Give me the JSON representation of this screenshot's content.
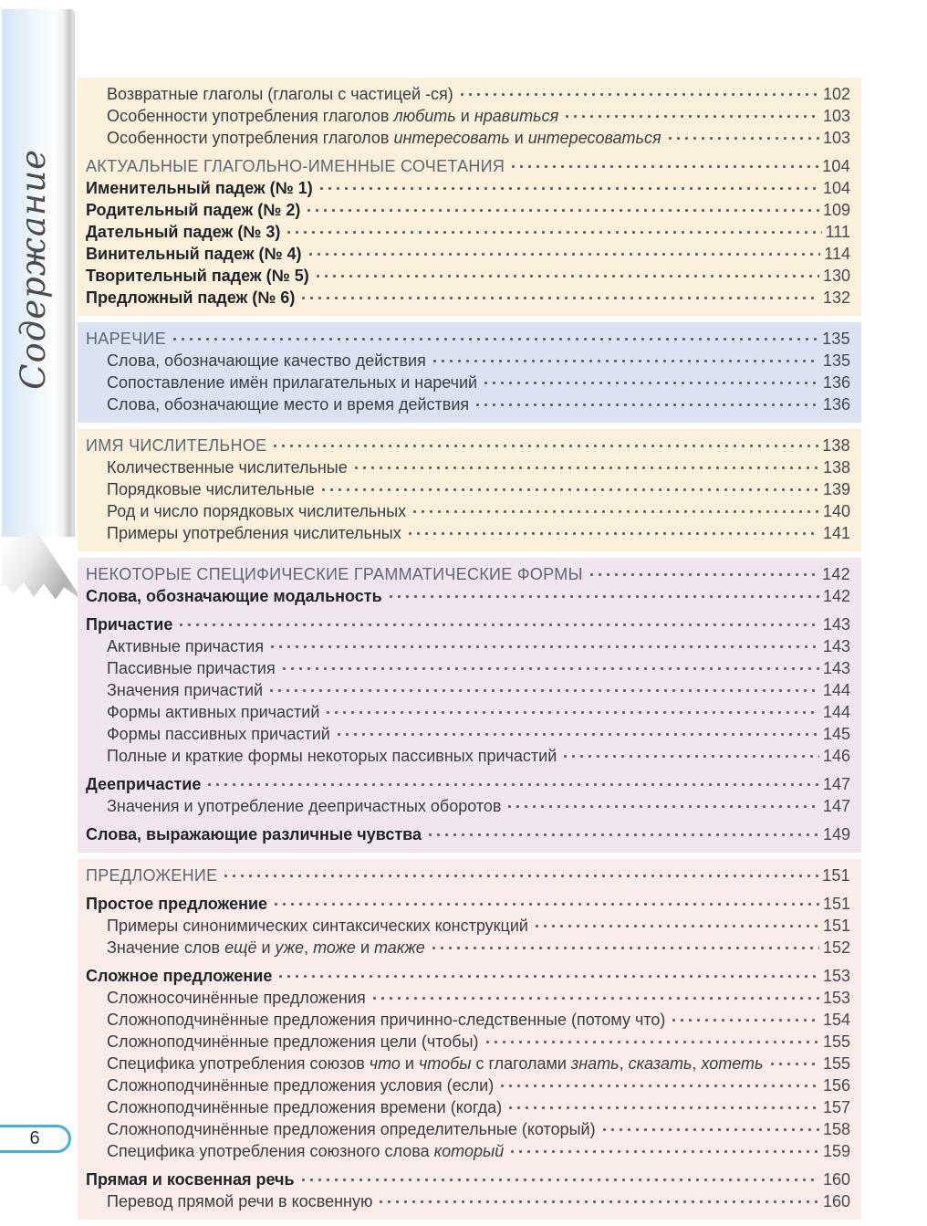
{
  "sidebar": {
    "label": "Содержание"
  },
  "footer": {
    "page_number": "6"
  },
  "colors": {
    "cream": "#faf0db",
    "blue": "#dbe3f2",
    "purple": "#f1e6ef",
    "pink": "#faece9",
    "header_text": "#5c6875",
    "body_text": "#383d44",
    "bold_text": "#1f242a",
    "pill_border": "#3fb0e0"
  },
  "sections": [
    {
      "bg": "cream",
      "entries": [
        {
          "level": "sub",
          "text": "Возвратные глаголы (глаголы с частицей -ся)",
          "page": "102"
        },
        {
          "level": "sub",
          "parts": [
            {
              "t": "Особенности употребления глаголов "
            },
            {
              "t": "любить",
              "i": true
            },
            {
              "t": " и "
            },
            {
              "t": "нравиться",
              "i": true
            }
          ],
          "page": "103"
        },
        {
          "level": "sub",
          "parts": [
            {
              "t": "Особенности употребления глаголов "
            },
            {
              "t": "интересовать",
              "i": true
            },
            {
              "t": " и "
            },
            {
              "t": "интересоваться",
              "i": true
            }
          ],
          "page": "103"
        },
        {
          "level": "header",
          "gap": true,
          "text": "АКТУАЛЬНЫЕ ГЛАГОЛЬНО-ИМЕННЫЕ СОЧЕТАНИЯ",
          "page": "104"
        },
        {
          "level": "bold",
          "text": "Именительный падеж (№ 1)",
          "page": "104"
        },
        {
          "level": "bold",
          "text": "Родительный падеж (№ 2)",
          "page": "109"
        },
        {
          "level": "bold",
          "text": "Дательный падеж (№ 3)",
          "page": "111"
        },
        {
          "level": "bold",
          "text": "Винительный падеж (№ 4)",
          "page": "114"
        },
        {
          "level": "bold",
          "text": "Творительный падеж (№ 5)",
          "page": "130"
        },
        {
          "level": "bold",
          "text": "Предложный падеж (№ 6)",
          "page": "132"
        }
      ]
    },
    {
      "bg": "blue",
      "entries": [
        {
          "level": "header",
          "text": "НАРЕЧИЕ",
          "page": "135"
        },
        {
          "level": "sub",
          "text": "Слова, обозначающие качество действия",
          "page": "135"
        },
        {
          "level": "sub",
          "text": "Сопоставление имён прилагательных и наречий",
          "page": "136"
        },
        {
          "level": "sub",
          "text": "Слова, обозначающие место и время действия",
          "page": "136"
        }
      ]
    },
    {
      "bg": "cream",
      "entries": [
        {
          "level": "header",
          "text": "ИМЯ ЧИСЛИТЕЛЬНОЕ",
          "page": "138"
        },
        {
          "level": "sub",
          "text": "Количественные числительные",
          "page": "138"
        },
        {
          "level": "sub",
          "text": "Порядковые числительные",
          "page": "139"
        },
        {
          "level": "sub",
          "text": "Род и число порядковых числительных",
          "page": "140"
        },
        {
          "level": "sub",
          "text": "Примеры употребления числительных",
          "page": "141"
        }
      ]
    },
    {
      "bg": "purple",
      "entries": [
        {
          "level": "header",
          "text": "НЕКОТОРЫЕ СПЕЦИФИЧЕСКИЕ ГРАММАТИЧЕСКИЕ ФОРМЫ",
          "page": "142"
        },
        {
          "level": "bold",
          "text": "Слова, обозначающие модальность",
          "page": "142"
        },
        {
          "level": "bold",
          "gap": true,
          "text": "Причастие",
          "page": "143"
        },
        {
          "level": "sub",
          "text": "Активные причастия",
          "page": "143"
        },
        {
          "level": "sub",
          "text": "Пассивные причастия",
          "page": "143"
        },
        {
          "level": "sub",
          "text": "Значения причастий",
          "page": "144"
        },
        {
          "level": "sub",
          "text": "Формы активных причастий",
          "page": "144"
        },
        {
          "level": "sub",
          "text": "Формы пассивных причастий",
          "page": "145"
        },
        {
          "level": "sub",
          "text": "Полные и краткие формы некоторых пассивных причастий",
          "page": "146"
        },
        {
          "level": "bold",
          "gap": true,
          "text": "Деепричастие",
          "page": "147"
        },
        {
          "level": "sub",
          "text": "Значения и употребление деепричастных оборотов",
          "page": "147"
        },
        {
          "level": "bold",
          "gap": true,
          "text": "Слова, выражающие различные чувства",
          "page": "149"
        }
      ]
    },
    {
      "bg": "pink",
      "entries": [
        {
          "level": "header",
          "text": "ПРЕДЛОЖЕНИЕ",
          "page": "151"
        },
        {
          "level": "bold",
          "gap": true,
          "text": "Простое предложение",
          "page": "151"
        },
        {
          "level": "sub",
          "text": "Примеры синонимических синтаксических конструкций",
          "page": "151"
        },
        {
          "level": "sub",
          "parts": [
            {
              "t": "Значение слов "
            },
            {
              "t": "ещё",
              "i": true
            },
            {
              "t": " и "
            },
            {
              "t": "уже",
              "i": true
            },
            {
              "t": ", "
            },
            {
              "t": "тоже",
              "i": true
            },
            {
              "t": " и "
            },
            {
              "t": "также",
              "i": true
            }
          ],
          "page": "152"
        },
        {
          "level": "bold",
          "gap": true,
          "text": "Сложное предложение",
          "page": "153"
        },
        {
          "level": "sub",
          "text": "Сложносочинённые предложения",
          "page": "153"
        },
        {
          "level": "sub",
          "text": "Сложноподчинённые предложения причинно-следственные (потому что)",
          "page": "154"
        },
        {
          "level": "sub",
          "text": "Сложноподчинённые предложения цели (чтобы)",
          "page": "155"
        },
        {
          "level": "sub",
          "parts": [
            {
              "t": "Специфика употребления союзов "
            },
            {
              "t": "что",
              "i": true
            },
            {
              "t": " и "
            },
            {
              "t": "чтобы",
              "i": true
            },
            {
              "t": " с глаголами "
            },
            {
              "t": "знать",
              "i": true
            },
            {
              "t": ", "
            },
            {
              "t": "сказать",
              "i": true
            },
            {
              "t": ", "
            },
            {
              "t": "хотеть",
              "i": true
            }
          ],
          "page": "155"
        },
        {
          "level": "sub",
          "text": "Сложноподчинённые предложения условия (если)",
          "page": "156"
        },
        {
          "level": "sub",
          "text": "Сложноподчинённые предложения времени (когда)",
          "page": "157"
        },
        {
          "level": "sub",
          "text": "Сложноподчинённые предложения определительные (который)",
          "page": "158"
        },
        {
          "level": "sub",
          "parts": [
            {
              "t": "Специфика употребления союзного слова "
            },
            {
              "t": "который",
              "i": true
            }
          ],
          "page": "159"
        },
        {
          "level": "bold",
          "gap": true,
          "text": "Прямая и косвенная речь",
          "page": "160"
        },
        {
          "level": "sub",
          "text": "Перевод прямой речи в косвенную",
          "page": "160"
        }
      ]
    }
  ]
}
